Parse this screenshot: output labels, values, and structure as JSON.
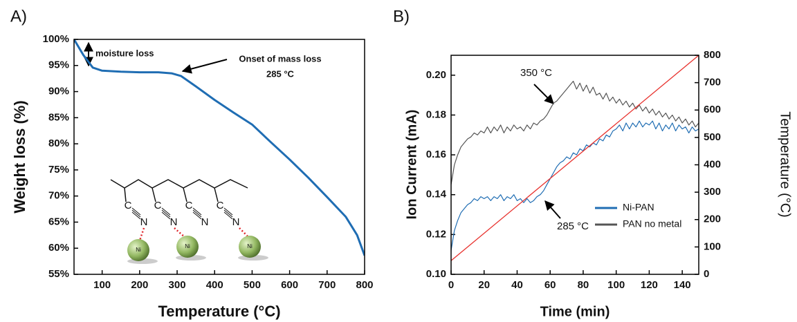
{
  "chart_data": [
    {
      "type": "line",
      "panel": "A)",
      "xlabel": "Temperature (°C)",
      "ylabel": "Weight loss (%)",
      "x": [
        25,
        50,
        75,
        100,
        150,
        200,
        250,
        285,
        310,
        350,
        400,
        450,
        500,
        550,
        600,
        650,
        700,
        750,
        780,
        800
      ],
      "series": [
        {
          "color": "#1f6db3",
          "values": [
            100,
            97,
            94.6,
            94,
            93.8,
            93.7,
            93.7,
            93.5,
            93,
            91,
            88.4,
            86,
            83.7,
            80.3,
            77,
            73.5,
            69.8,
            66,
            62.5,
            58.6
          ]
        }
      ],
      "xlim": [
        25,
        800
      ],
      "xticks": [
        100,
        200,
        300,
        400,
        500,
        600,
        700,
        800
      ],
      "ylim": [
        55,
        100
      ],
      "yticks": [
        {
          "value": 55,
          "label": "55%"
        },
        {
          "value": 60,
          "label": "60%"
        },
        {
          "value": 65,
          "label": "65%"
        },
        {
          "value": 70,
          "label": "70%"
        },
        {
          "value": 75,
          "label": "75%"
        },
        {
          "value": 80,
          "label": "80%"
        },
        {
          "value": 85,
          "label": "85%"
        },
        {
          "value": 90,
          "label": "90%"
        },
        {
          "value": 95,
          "label": "95%"
        },
        {
          "value": 100,
          "label": "100%"
        }
      ],
      "annotations": [
        "moisture loss",
        "Onset of mass loss",
        "285 °C"
      ],
      "inset_labels": [
        "C",
        "N",
        "C",
        "N",
        "C",
        "N",
        "C",
        "N",
        "Ni",
        "Ni",
        "Ni"
      ]
    },
    {
      "type": "line",
      "panel": "B)",
      "xlabel": "Time (min)",
      "ylabel": "Ion Current (mA)",
      "y2label": "Temperature (°C)",
      "x": [
        0,
        2,
        4,
        6,
        8,
        10,
        12,
        14,
        16,
        18,
        20,
        22,
        24,
        26,
        28,
        30,
        32,
        34,
        36,
        38,
        40,
        42,
        44,
        46,
        48,
        50,
        52,
        54,
        56,
        58,
        60,
        62,
        64,
        66,
        68,
        70,
        72,
        74,
        76,
        78,
        80,
        82,
        84,
        86,
        88,
        90,
        92,
        94,
        96,
        98,
        100,
        102,
        104,
        106,
        108,
        110,
        112,
        114,
        116,
        118,
        120,
        122,
        124,
        126,
        128,
        130,
        132,
        134,
        136,
        138,
        140,
        142,
        144,
        146,
        148,
        150
      ],
      "series": [
        {
          "name": "Ni-PAN",
          "color": "#1f6db3",
          "values": [
            0.112,
            0.122,
            0.127,
            0.131,
            0.133,
            0.135,
            0.136,
            0.138,
            0.137,
            0.139,
            0.138,
            0.139,
            0.137,
            0.139,
            0.138,
            0.14,
            0.137,
            0.139,
            0.138,
            0.14,
            0.137,
            0.138,
            0.136,
            0.138,
            0.136,
            0.137,
            0.139,
            0.14,
            0.142,
            0.145,
            0.148,
            0.151,
            0.154,
            0.156,
            0.157,
            0.159,
            0.158,
            0.161,
            0.16,
            0.163,
            0.162,
            0.165,
            0.164,
            0.166,
            0.165,
            0.168,
            0.167,
            0.17,
            0.169,
            0.172,
            0.173,
            0.175,
            0.172,
            0.176,
            0.173,
            0.176,
            0.174,
            0.177,
            0.174,
            0.176,
            0.175,
            0.177,
            0.173,
            0.176,
            0.172,
            0.175,
            0.173,
            0.176,
            0.172,
            0.175,
            0.173,
            0.174,
            0.171,
            0.174,
            0.172,
            0.173
          ]
        },
        {
          "name": "PAN no metal",
          "color": "#555555",
          "values": [
            0.145,
            0.155,
            0.16,
            0.164,
            0.166,
            0.168,
            0.169,
            0.171,
            0.17,
            0.172,
            0.171,
            0.174,
            0.171,
            0.174,
            0.172,
            0.175,
            0.171,
            0.174,
            0.172,
            0.175,
            0.173,
            0.174,
            0.172,
            0.175,
            0.173,
            0.176,
            0.175,
            0.177,
            0.178,
            0.18,
            0.183,
            0.186,
            0.187,
            0.189,
            0.191,
            0.193,
            0.195,
            0.197,
            0.193,
            0.196,
            0.192,
            0.195,
            0.191,
            0.194,
            0.19,
            0.191,
            0.188,
            0.191,
            0.187,
            0.189,
            0.186,
            0.188,
            0.185,
            0.187,
            0.184,
            0.186,
            0.183,
            0.185,
            0.182,
            0.184,
            0.181,
            0.183,
            0.18,
            0.182,
            0.179,
            0.181,
            0.178,
            0.18,
            0.177,
            0.179,
            0.176,
            0.178,
            0.175,
            0.177,
            0.174,
            0.176
          ]
        },
        {
          "color": "#e8322e",
          "axis": "y2",
          "x": [
            0,
            150
          ],
          "values": [
            50,
            800
          ]
        }
      ],
      "xlim": [
        0,
        150
      ],
      "xticks": [
        0,
        20,
        40,
        60,
        80,
        100,
        120,
        140
      ],
      "ylim": [
        0.1,
        0.21
      ],
      "yticks": [
        {
          "value": 0.1,
          "label": "0.10"
        },
        {
          "value": 0.12,
          "label": "0.12"
        },
        {
          "value": 0.14,
          "label": "0.14"
        },
        {
          "value": 0.16,
          "label": "0.16"
        },
        {
          "value": 0.18,
          "label": "0.18"
        },
        {
          "value": 0.2,
          "label": "0.20"
        }
      ],
      "y2lim": [
        0,
        800
      ],
      "y2ticks": [
        0,
        100,
        200,
        300,
        400,
        500,
        600,
        700,
        800
      ],
      "legend": "lower right",
      "annotations": [
        "350 °C",
        "285 °C"
      ]
    }
  ]
}
